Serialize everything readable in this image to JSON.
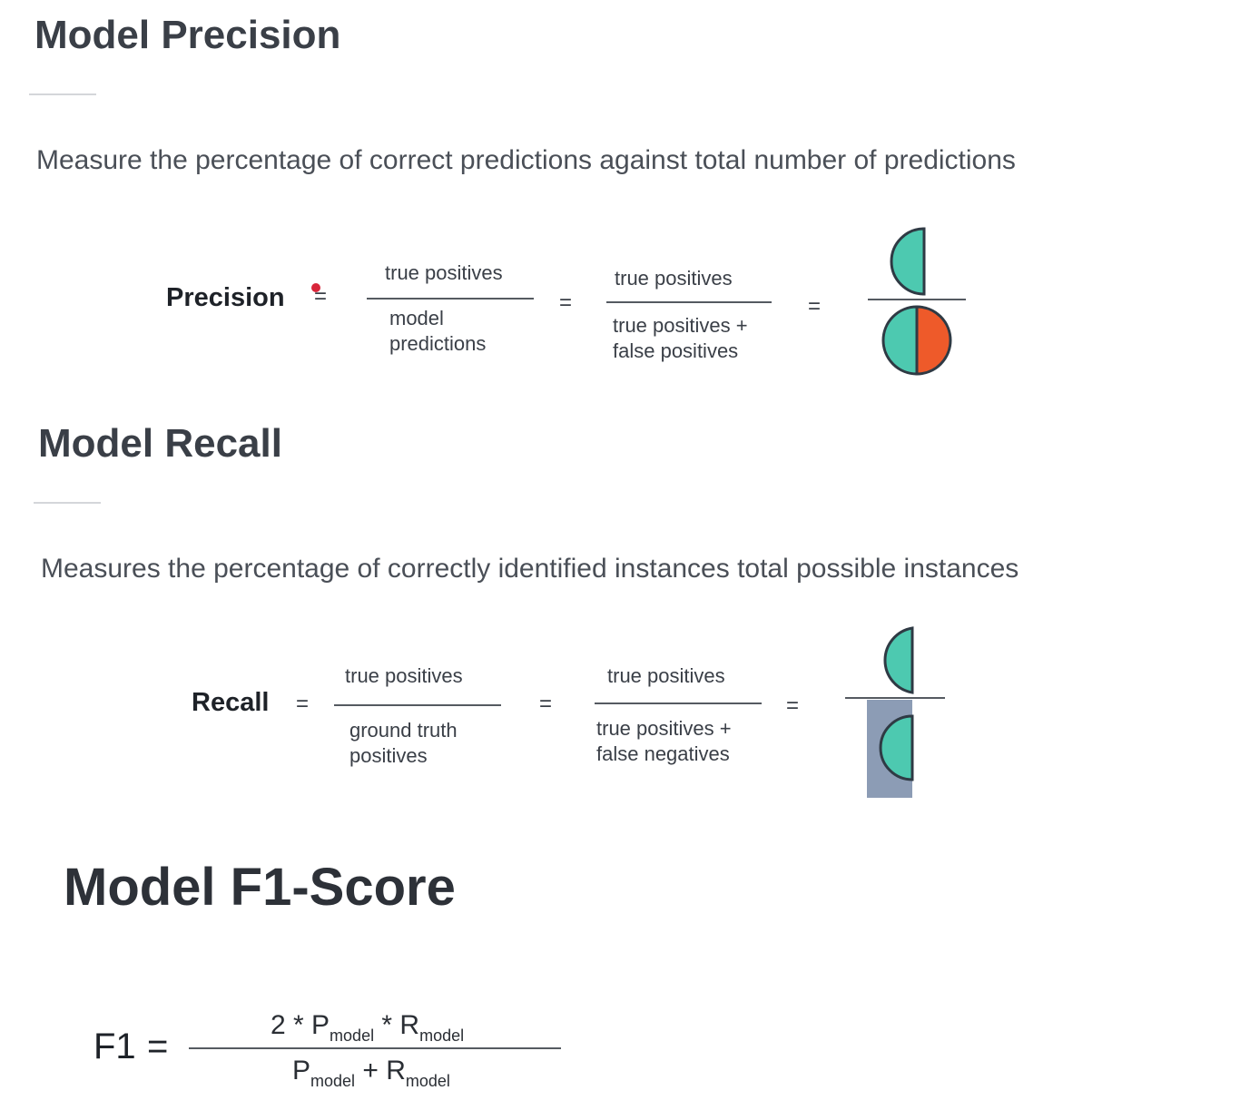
{
  "precision": {
    "title": "Model Precision",
    "description": "Measure the percentage of correct predictions against total number of predictions",
    "label": "Precision",
    "eq": "=",
    "frac1": {
      "num": "true positives",
      "den": [
        "model",
        "predictions"
      ]
    },
    "frac2": {
      "num": "true positives",
      "den": [
        "true positives +",
        "false positives"
      ]
    }
  },
  "recall": {
    "title": "Model Recall",
    "description": "Measures the percentage of correctly identified instances total possible instances",
    "label": "Recall",
    "eq": "=",
    "frac1": {
      "num": "true positives",
      "den": [
        "ground truth",
        "positives"
      ]
    },
    "frac2": {
      "num": "true positives",
      "den": [
        "true positives +",
        "false negatives"
      ]
    }
  },
  "f1": {
    "title": "Model F1-Score",
    "label": "F1",
    "eq": "=",
    "num_prefix": "2 * P",
    "times": " * R",
    "plus": " + R",
    "p": "P",
    "sub": "model"
  },
  "colors": {
    "teal": "#4dc9b0",
    "orange": "#ee5a2a",
    "stroke": "#2f3a44",
    "slate": "#8c9cb5"
  }
}
